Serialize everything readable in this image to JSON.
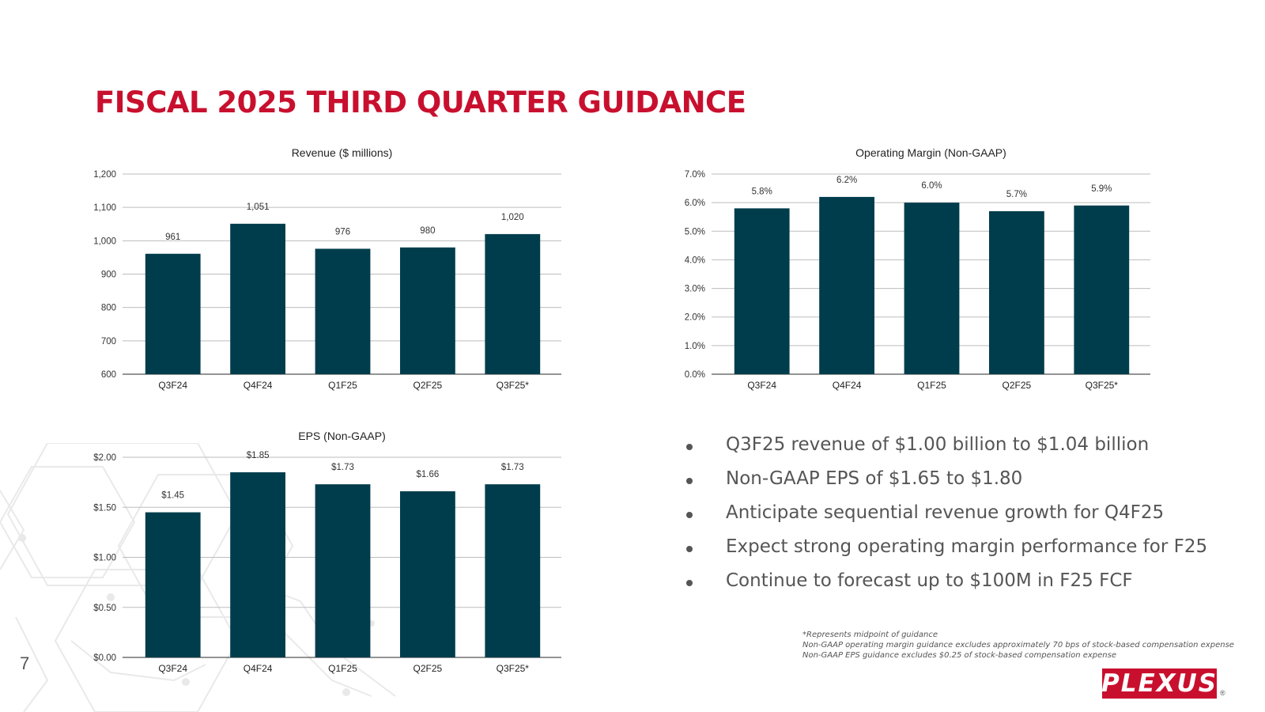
{
  "slide": {
    "title": "FISCAL 2025 THIRD QUARTER GUIDANCE",
    "page_number": "7",
    "logo_text": "PLEXUS",
    "logo_mark": "®"
  },
  "colors": {
    "title": "#c8102e",
    "bar": "#003d4c",
    "grid": "#bdbdbd",
    "axis": "#555555",
    "text": "#555555",
    "logo_bg": "#c8102e",
    "deco": "#e9e9e9"
  },
  "bullets": [
    "Q3F25 revenue of $1.00 billion to $1.04 billion",
    "Non-GAAP EPS of $1.65 to $1.80",
    "Anticipate sequential revenue growth for Q4F25",
    "Expect strong operating margin performance for F25",
    "Continue to forecast up to $100M in F25 FCF"
  ],
  "footnotes": [
    "*Represents midpoint of guidance",
    "Non-GAAP operating margin guidance excludes approximately 70 bps of stock-based compensation expense",
    "Non-GAAP EPS guidance excludes $0.25 of stock-based compensation expense"
  ],
  "chart_data": [
    {
      "id": "revenue",
      "type": "bar",
      "title": "Revenue ($ millions)",
      "categories": [
        "Q3F24",
        "Q4F24",
        "Q1F25",
        "Q2F25",
        "Q3F25*"
      ],
      "values": [
        961,
        1051,
        976,
        980,
        1020
      ],
      "data_labels": [
        "961",
        "1,051",
        "976",
        "980",
        "1,020"
      ],
      "ylim": [
        600,
        1200
      ],
      "yticks": [
        600,
        700,
        800,
        900,
        1000,
        1100,
        1200
      ],
      "ytick_labels": [
        "600",
        "700",
        "800",
        "900",
        "1,000",
        "1,100",
        "1,200"
      ],
      "grid": true,
      "legend": "none"
    },
    {
      "id": "opmargin",
      "type": "bar",
      "title": "Operating Margin (Non-GAAP)",
      "categories": [
        "Q3F24",
        "Q4F24",
        "Q1F25",
        "Q2F25",
        "Q3F25*"
      ],
      "values": [
        5.8,
        6.2,
        6.0,
        5.7,
        5.9
      ],
      "data_labels": [
        "5.8%",
        "6.2%",
        "6.0%",
        "5.7%",
        "5.9%"
      ],
      "ylim": [
        0,
        7
      ],
      "yticks": [
        0,
        1,
        2,
        3,
        4,
        5,
        6,
        7
      ],
      "ytick_labels": [
        "0.0%",
        "1.0%",
        "2.0%",
        "3.0%",
        "4.0%",
        "5.0%",
        "6.0%",
        "7.0%"
      ],
      "grid": true,
      "legend": "none"
    },
    {
      "id": "eps",
      "type": "bar",
      "title": "EPS (Non-GAAP)",
      "categories": [
        "Q3F24",
        "Q4F24",
        "Q1F25",
        "Q2F25",
        "Q3F25*"
      ],
      "values": [
        1.45,
        1.85,
        1.73,
        1.66,
        1.73
      ],
      "data_labels": [
        "$1.45",
        "$1.85",
        "$1.73",
        "$1.66",
        "$1.73"
      ],
      "ylim": [
        0,
        2
      ],
      "yticks": [
        0,
        0.5,
        1,
        1.5,
        2
      ],
      "ytick_labels": [
        "$0.00",
        "$0.50",
        "$1.00",
        "$1.50",
        "$2.00"
      ],
      "grid": true,
      "legend": "none"
    }
  ]
}
